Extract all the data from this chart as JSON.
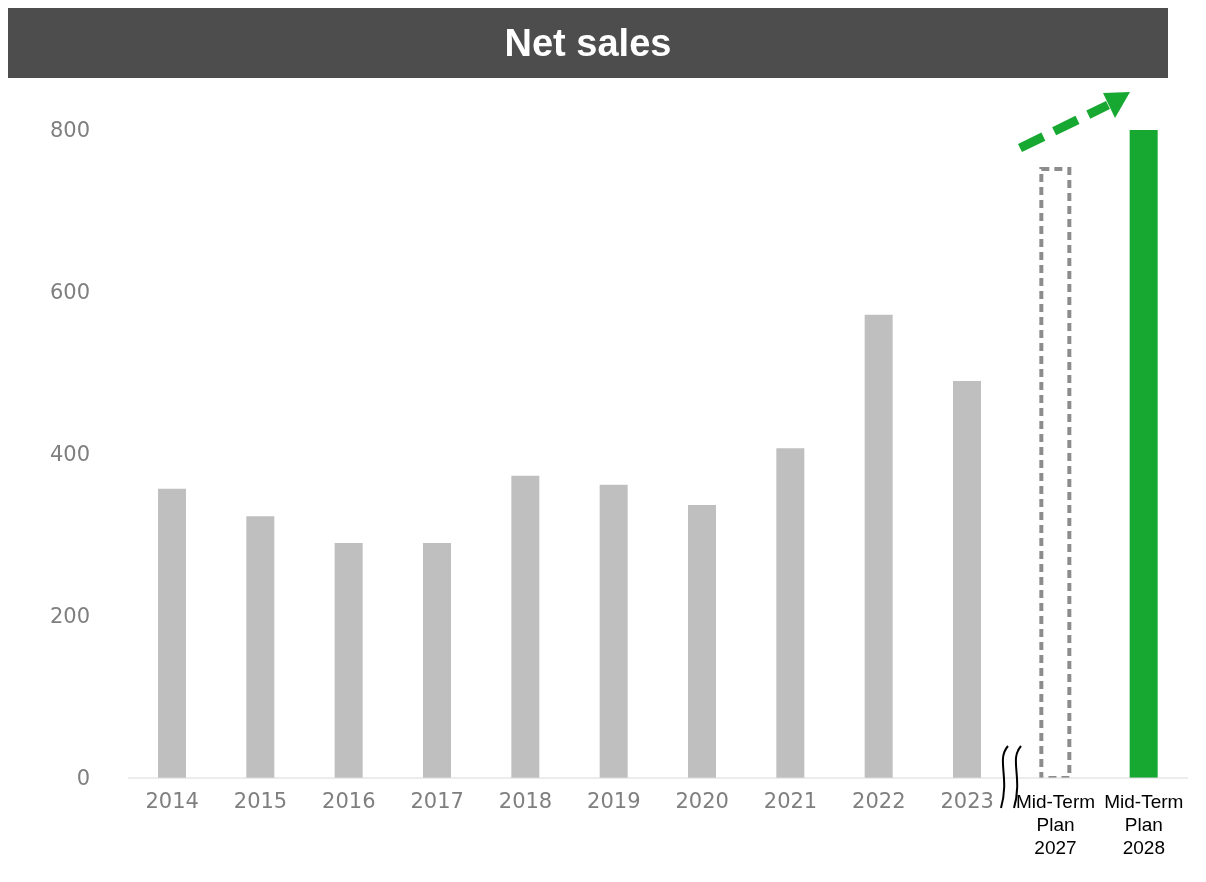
{
  "chart_data": {
    "type": "bar",
    "title": "Net sales",
    "categories": [
      "2014",
      "2015",
      "2016",
      "2017",
      "2018",
      "2019",
      "2020",
      "2021",
      "2022",
      "2023",
      "Mid-Term Plan 2027",
      "Mid-Term Plan 2028"
    ],
    "stacked": true,
    "series": [
      {
        "colors": [
          "#bfbfbf",
          "#bfbfbf",
          "#bfbfbf",
          "#bfbfbf",
          "#bfbfbf",
          "#bfbfbf",
          "#bfbfbf",
          "#bfbfbf",
          "#bfbfbf",
          "#bfbfbf",
          "#bfbfbf",
          "#17a832"
        ],
        "values": [
          357,
          323,
          290,
          290,
          373,
          362,
          337,
          407,
          572,
          490,
          null,
          800
        ]
      },
      {
        "color": "#8c8c8c",
        "line_style": "dashed",
        "values": [
          null,
          null,
          null,
          null,
          null,
          null,
          null,
          null,
          null,
          null,
          752,
          null
        ]
      }
    ],
    "ylim": [
      0,
      800
    ],
    "yticks": [
      0,
      200,
      400,
      600,
      800
    ],
    "grid": false,
    "legend": false
  }
}
